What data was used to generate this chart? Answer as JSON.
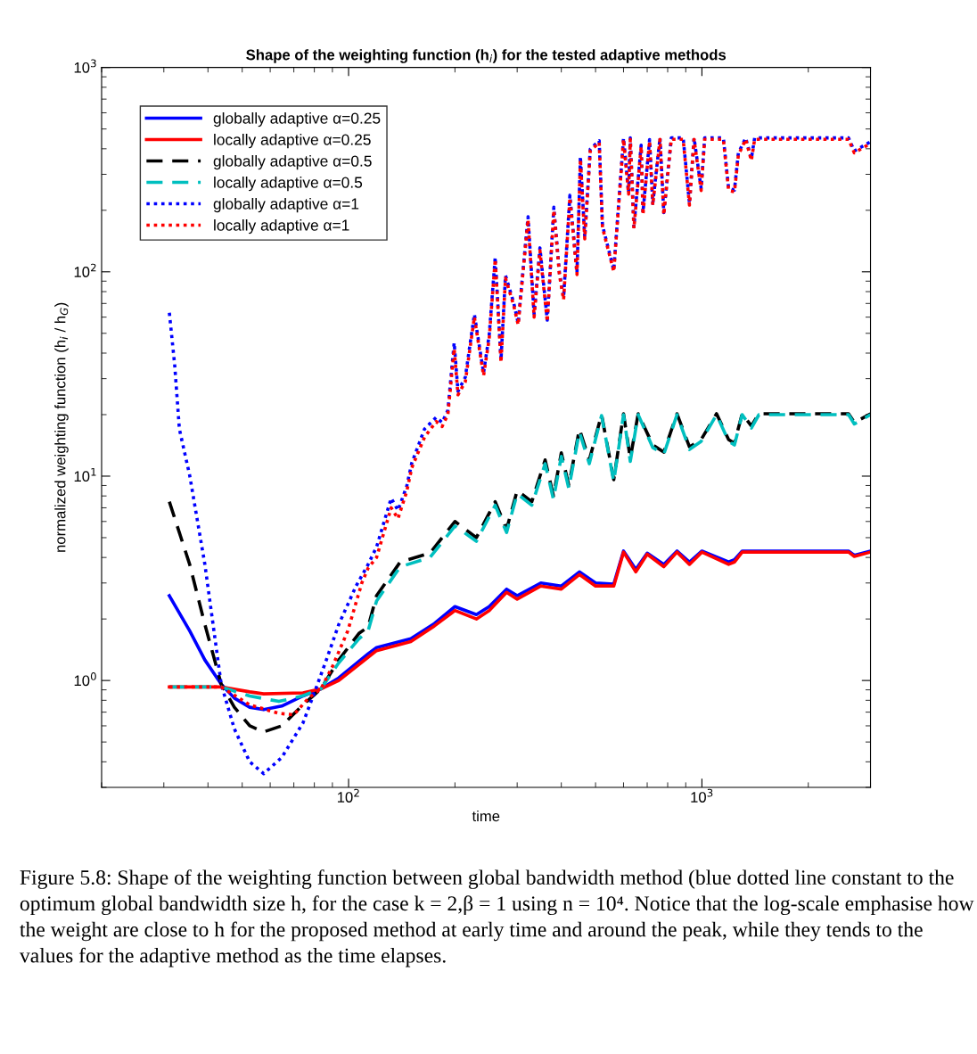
{
  "chart_data": {
    "type": "line",
    "title": "Shape of the weighting function (h$_{i}$) for the tested adaptive methods",
    "xlabel": "time",
    "ylabel": "normalized weighting function (h$_{i}$ / h$_{G}$)",
    "log": "xy",
    "grid": false,
    "legend": "top left",
    "marker": "none",
    "xlim": [
      20,
      3000
    ],
    "xticks": [
      {
        "value": 100,
        "label": "10$^{2}$"
      },
      {
        "value": 1000,
        "label": "10$^{3}$"
      }
    ],
    "ylim": [
      0.3,
      1000
    ],
    "yticks": [
      {
        "value": 1,
        "label": "10$^{0}$"
      },
      {
        "value": 10,
        "label": "10$^{1}$"
      },
      {
        "value": 100,
        "label": "10$^{2}$"
      },
      {
        "value": 1000,
        "label": "10$^{3}$"
      }
    ],
    "series": [
      {
        "name": "globally adaptive α=0.25",
        "color": "#0000ff",
        "line_style": "solid",
        "x": [
          31.1,
          35.5,
          39.2,
          43.6,
          47.5,
          52.5,
          57.5,
          64.7,
          74.3,
          83.5,
          93.8,
          113.6,
          120,
          150,
          175,
          200,
          230,
          250,
          280,
          300,
          350,
          400,
          450,
          500,
          563,
          600,
          650,
          700,
          780,
          850,
          922,
          1000,
          1190,
          1236,
          1300,
          2600,
          2700,
          3000
        ],
        "values": [
          2.6,
          1.75,
          1.26,
          0.96,
          0.82,
          0.74,
          0.72,
          0.75,
          0.84,
          0.91,
          1.03,
          1.35,
          1.45,
          1.6,
          1.9,
          2.3,
          2.1,
          2.3,
          2.8,
          2.6,
          3.0,
          2.9,
          3.4,
          3.0,
          2.96,
          4.3,
          3.5,
          4.2,
          3.7,
          4.3,
          3.8,
          4.3,
          3.8,
          3.9,
          4.3,
          4.3,
          4.1,
          4.3
        ]
      },
      {
        "name": "locally adaptive α=0.25",
        "color": "#ff0000",
        "line_style": "solid",
        "x": [
          31.1,
          35.5,
          39.2,
          43.6,
          52.5,
          57.5,
          74.3,
          83.5,
          93.8,
          113.6,
          120,
          150,
          175,
          200,
          230,
          250,
          280,
          300,
          350,
          400,
          450,
          500,
          563,
          600,
          650,
          700,
          780,
          850,
          922,
          1000,
          1190,
          1236,
          1300,
          2600,
          2700,
          3000
        ],
        "values": [
          0.93,
          0.93,
          0.93,
          0.93,
          0.88,
          0.86,
          0.87,
          0.91,
          1.0,
          1.3,
          1.4,
          1.55,
          1.85,
          2.2,
          2.0,
          2.2,
          2.7,
          2.5,
          2.9,
          2.8,
          3.3,
          2.9,
          2.9,
          4.25,
          3.4,
          4.15,
          3.6,
          4.25,
          3.7,
          4.25,
          3.7,
          3.8,
          4.25,
          4.25,
          4.05,
          4.25
        ]
      },
      {
        "name": "globally adaptive α=0.5",
        "color": "#000000",
        "line_style": "dashed",
        "x": [
          31.1,
          35.5,
          39.2,
          43.6,
          47.5,
          52.5,
          57.5,
          64.7,
          74.3,
          83.5,
          93.8,
          107,
          113.6,
          120,
          140,
          170,
          200,
          230,
          260,
          280,
          300,
          330,
          360,
          380,
          400,
          420,
          450,
          480,
          520,
          563,
          600,
          627,
          660,
          726,
          780,
          850,
          922,
          995,
          1100,
          1190,
          1236,
          1300,
          1380,
          1450,
          2600,
          2700,
          3000
        ],
        "values": [
          7.5,
          3.7,
          1.88,
          0.96,
          0.74,
          0.6,
          0.56,
          0.6,
          0.76,
          0.91,
          1.26,
          1.7,
          1.83,
          2.6,
          3.8,
          4.2,
          6.0,
          5.0,
          7.5,
          5.5,
          8.5,
          7.5,
          12,
          8,
          13,
          9,
          17,
          12,
          20,
          9.6,
          20.2,
          12.2,
          20.2,
          14.2,
          13.1,
          20.2,
          13.9,
          15.1,
          20.2,
          15.1,
          14.5,
          20.2,
          17.6,
          20.2,
          20.2,
          18.3,
          20.2
        ]
      },
      {
        "name": "locally adaptive α=0.5",
        "color": "#00bfbf",
        "line_style": "dashed",
        "x": [
          31.1,
          35.5,
          39.2,
          43.6,
          52.5,
          63.5,
          74,
          83.5,
          93.8,
          107,
          113.6,
          120,
          140,
          170,
          200,
          230,
          260,
          280,
          300,
          330,
          360,
          380,
          400,
          420,
          450,
          480,
          520,
          563,
          600,
          627,
          660,
          726,
          780,
          850,
          922,
          995,
          1100,
          1190,
          1236,
          1300,
          1380,
          1450,
          2600,
          2700,
          3000
        ],
        "values": [
          0.93,
          0.93,
          0.93,
          0.93,
          0.84,
          0.79,
          0.84,
          0.91,
          1.22,
          1.6,
          1.75,
          2.45,
          3.6,
          4.0,
          5.7,
          4.8,
          7.2,
          5.3,
          8.2,
          7.2,
          11.5,
          7.7,
          12.5,
          8.7,
          16.5,
          11.5,
          19.8,
          9.4,
          20,
          11.8,
          20,
          13.8,
          12.8,
          20,
          13.5,
          14.8,
          20,
          14.8,
          14.2,
          20,
          17.2,
          20,
          20,
          18,
          20
        ]
      },
      {
        "name": "globally adaptive α=1",
        "color": "#0000ff",
        "line_style": "dotted",
        "x": [
          31.1,
          32.2,
          33.2,
          35.5,
          39.2,
          43.6,
          47.5,
          52.5,
          57.5,
          64.7,
          74.3,
          80,
          86.5,
          93.8,
          105,
          113.6,
          120,
          132,
          138,
          146,
          151,
          164,
          177,
          184,
          191,
          199,
          204,
          214,
          227,
          241,
          250,
          260,
          270,
          278,
          293,
          302,
          310,
          322,
          335,
          348,
          365,
          381,
          395,
          406,
          423,
          443,
          453,
          466,
          483,
          512,
          523,
          563,
          600,
          620,
          627,
          642,
          673,
          681,
          711,
          726,
          761,
          780,
          819,
          885,
          922,
          950,
          995,
          1018,
          1150,
          1190,
          1236,
          1268,
          1330,
          1380,
          1410,
          2600,
          2700,
          3000
        ],
        "values": [
          63,
          35,
          17,
          10.1,
          3.7,
          0.96,
          0.58,
          0.4,
          0.35,
          0.42,
          0.62,
          0.87,
          1.26,
          1.88,
          2.9,
          3.7,
          4.5,
          7.8,
          6.8,
          8.9,
          11.6,
          17,
          19.4,
          18.3,
          21,
          45,
          26,
          30.5,
          62,
          32,
          49,
          118,
          37,
          96,
          71,
          56,
          92,
          186,
          62,
          131,
          58,
          207,
          99,
          75,
          237,
          99,
          366,
          148,
          398,
          438,
          169,
          102,
          452,
          245,
          452,
          166,
          417,
          195,
          444,
          216,
          452,
          195,
          452,
          452,
          216,
          452,
          256,
          452,
          452,
          256,
          251,
          381,
          452,
          358,
          452,
          452,
          390,
          433
        ]
      },
      {
        "name": "locally adaptive α=1",
        "color": "#ff0000",
        "line_style": "dotted",
        "x": [
          31.1,
          35.5,
          39.2,
          43.6,
          52.5,
          63.5,
          70,
          77,
          83.5,
          90,
          99.5,
          109,
          113.6,
          120,
          132,
          138,
          146,
          151,
          164,
          177,
          184,
          191,
          199,
          204,
          214,
          227,
          241,
          250,
          260,
          270,
          278,
          293,
          302,
          310,
          322,
          335,
          348,
          365,
          381,
          395,
          406,
          423,
          443,
          453,
          466,
          483,
          512,
          523,
          563,
          600,
          620,
          627,
          642,
          673,
          681,
          711,
          726,
          761,
          780,
          819,
          885,
          922,
          950,
          995,
          1018,
          1150,
          1190,
          1236,
          1268,
          1330,
          1380,
          1410,
          2600,
          2700,
          3000
        ],
        "values": [
          0.93,
          0.93,
          0.93,
          0.93,
          0.76,
          0.69,
          0.68,
          0.82,
          0.91,
          1.17,
          1.75,
          3.0,
          3.55,
          4.0,
          7.0,
          6.2,
          8.4,
          11,
          15.5,
          18.5,
          17.5,
          20,
          42,
          25,
          29,
          60,
          31,
          47,
          115,
          36,
          93,
          69,
          55,
          90,
          180,
          60,
          127,
          57,
          200,
          97,
          73,
          230,
          97,
          355,
          145,
          390,
          430,
          165,
          100,
          445,
          240,
          445,
          163,
          410,
          190,
          437,
          212,
          445,
          190,
          445,
          445,
          212,
          445,
          250,
          445,
          445,
          250,
          246,
          372,
          445,
          350,
          445,
          445,
          382,
          425
        ]
      }
    ],
    "annotations": [
      "Figure 5.8: Shape of the weighting function between global bandwidth method (blue dotted line constant to the optimum global bandwidth size h, for the case k = 2,β = 1 using n = 10⁴. Notice that the log-scale emphasise how the weight are close to h for the proposed method at early time and around the peak, while they tends to the values for the adaptive method as the time elapses."
    ]
  }
}
